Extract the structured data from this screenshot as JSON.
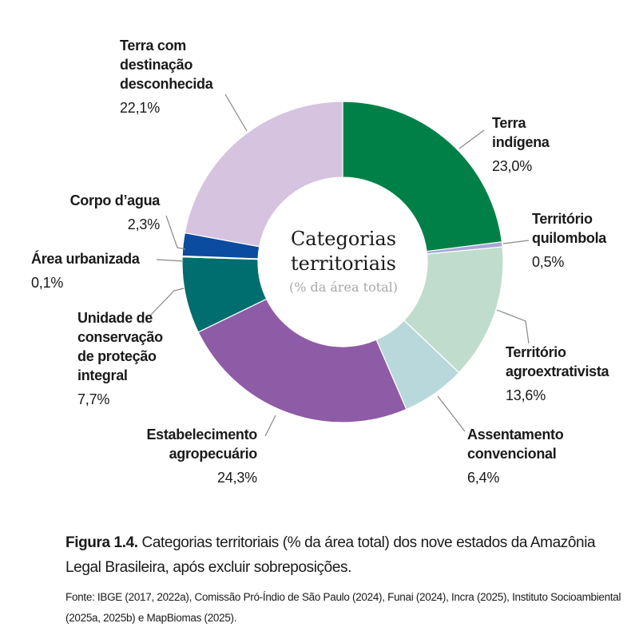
{
  "chart_data": {
    "type": "pie",
    "variant": "donut",
    "title": "Categorias territoriais",
    "subtitle": "(% da área total)",
    "slices": [
      {
        "label": "Terra indígena",
        "lines": [
          "Terra",
          "indígena"
        ],
        "value": 23.0,
        "text": "23,0%",
        "color": "#008047"
      },
      {
        "label": "Território quilombola",
        "lines": [
          "Território",
          "quilombola"
        ],
        "value": 0.5,
        "text": "0,5%",
        "color": "#a9a6d6"
      },
      {
        "label": "Território agroextrativista",
        "lines": [
          "Território",
          "agroextrativista"
        ],
        "value": 13.6,
        "text": "13,6%",
        "color": "#c0dccd"
      },
      {
        "label": "Assentamento convencional",
        "lines": [
          "Assentamento",
          "convencional"
        ],
        "value": 6.4,
        "text": "6,4%",
        "color": "#b9d8dc"
      },
      {
        "label": "Estabelecimento agropecuário",
        "lines": [
          "Estabelecimento",
          "agropecuário"
        ],
        "value": 24.3,
        "text": "24,3%",
        "color": "#8e5ba6"
      },
      {
        "label": "Unidade de conservação de proteção integral",
        "lines": [
          "Unidade de",
          "conservação",
          "de proteção",
          "integral"
        ],
        "value": 7.7,
        "text": "7,7%",
        "color": "#006d6e"
      },
      {
        "label": "Área urbanizada",
        "lines": [
          "Área urbanizada"
        ],
        "value": 0.1,
        "text": "0,1%",
        "color": "#8d9a98"
      },
      {
        "label": "Corpo d'agua",
        "lines": [
          "Corpo d’agua"
        ],
        "value": 2.3,
        "text": "2,3%",
        "color": "#0b4ba0"
      },
      {
        "label": "Terra com destinação desconhecida",
        "lines": [
          "Terra com",
          "destinação",
          "desconhecida"
        ],
        "value": 22.1,
        "text": "22,1%",
        "color": "#d5c3df"
      }
    ]
  },
  "caption": {
    "figure": "Figura 1.4.",
    "text": "Categorias territoriais (% da área total) dos nove estados da Amazônia Legal Brasileira, após excluir sobreposições.",
    "source": "Fonte: IBGE (2017, 2022a), Comissão Pró-Índio de São Paulo (2024), Funai (2024), Incra (2025), Instituto Socioambiental (2025a, 2025b) e MapBiomas (2025)."
  }
}
